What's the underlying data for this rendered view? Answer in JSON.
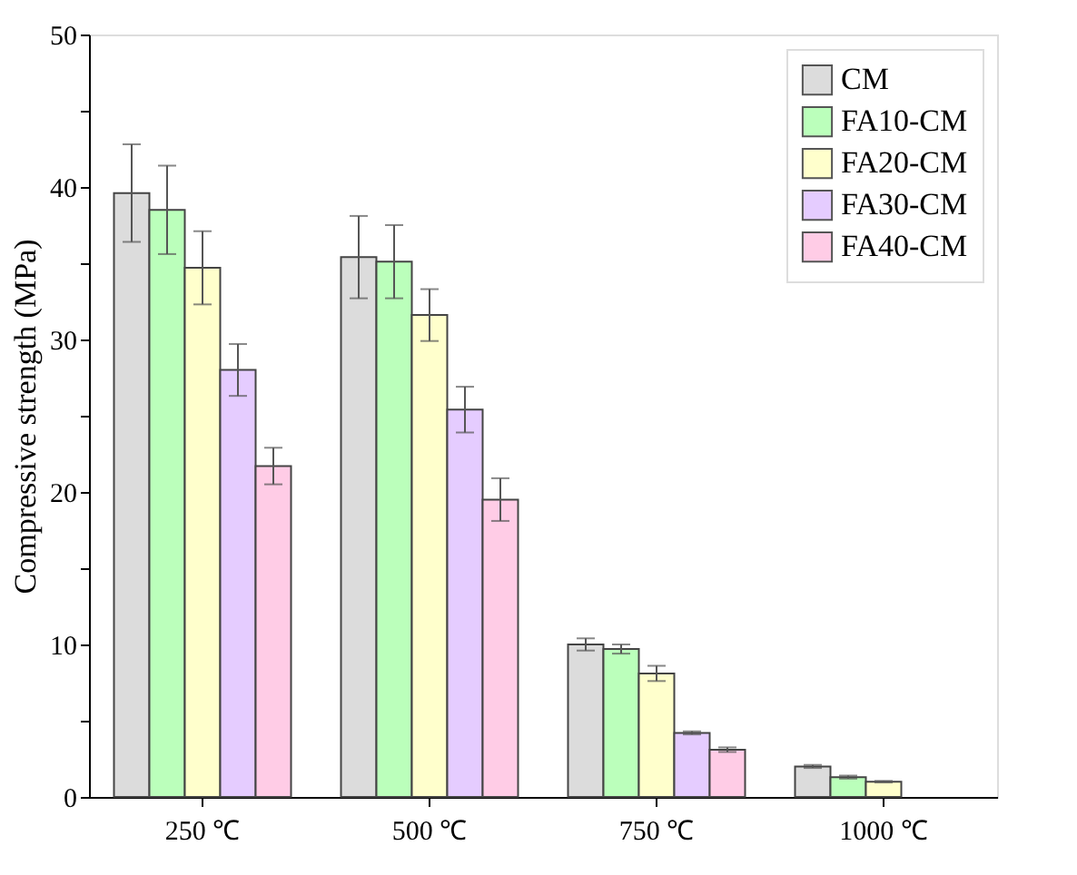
{
  "chart_data": {
    "type": "bar",
    "ylabel": "Compressive strength (MPa)",
    "categories": [
      "250 ℃",
      "500 ℃",
      "750 ℃",
      "1000 ℃"
    ],
    "series": [
      {
        "name": "CM",
        "color": "#dcdcdc",
        "values": [
          39.6,
          35.4,
          10.0,
          2.0
        ],
        "errors": [
          3.2,
          2.7,
          0.4,
          0.1
        ]
      },
      {
        "name": "FA10-CM",
        "color": "#bbffbb",
        "values": [
          38.5,
          35.1,
          9.7,
          1.3
        ],
        "errors": [
          2.9,
          2.4,
          0.3,
          0.1
        ]
      },
      {
        "name": "FA20-CM",
        "color": "#ffffcc",
        "values": [
          34.7,
          31.6,
          8.1,
          1.0
        ],
        "errors": [
          2.4,
          1.7,
          0.5,
          0.05
        ]
      },
      {
        "name": "FA30-CM",
        "color": "#e5ccff",
        "values": [
          28.0,
          25.4,
          4.2,
          null
        ],
        "errors": [
          1.7,
          1.5,
          0.1,
          null
        ]
      },
      {
        "name": "FA40-CM",
        "color": "#ffcce6",
        "values": [
          21.7,
          19.5,
          3.1,
          null
        ],
        "errors": [
          1.2,
          1.4,
          0.15,
          null
        ]
      }
    ],
    "ylim": [
      0,
      50
    ],
    "yticks": [
      0,
      {
        "value": 5,
        "label": null
      },
      10,
      {
        "value": 15,
        "label": null
      },
      20,
      {
        "value": 25,
        "label": null
      },
      30,
      {
        "value": 35,
        "label": null
      },
      40,
      {
        "value": 45,
        "label": null
      },
      50
    ],
    "grid": false,
    "legend": "top right"
  }
}
